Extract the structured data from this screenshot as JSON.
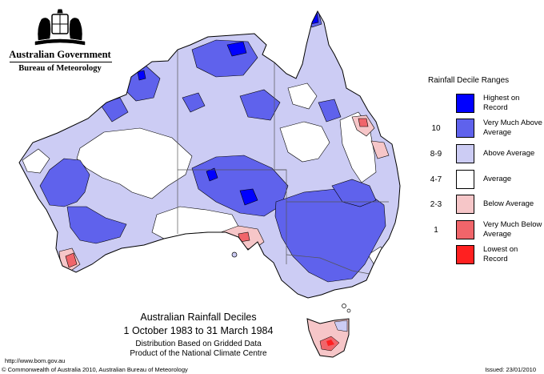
{
  "header": {
    "government": "Australian Government",
    "bureau": "Bureau of Meteorology"
  },
  "legend": {
    "title": "Rainfall Decile Ranges",
    "entries": [
      {
        "range": "",
        "label": "Highest on Record",
        "color": "#0000ff"
      },
      {
        "range": "10",
        "label": "Very Much Above Average",
        "color": "#5f62ec"
      },
      {
        "range": "8-9",
        "label": "Above Average",
        "color": "#ccccf4"
      },
      {
        "range": "4-7",
        "label": "Average",
        "color": "#ffffff"
      },
      {
        "range": "2-3",
        "label": "Below Average",
        "color": "#f6c6c8"
      },
      {
        "range": "1",
        "label": "Very Much Below Average",
        "color": "#f0656a"
      },
      {
        "range": "",
        "label": "Lowest on Record",
        "color": "#ff2020"
      }
    ]
  },
  "map": {
    "title": "Australian Rainfall Deciles",
    "subtitle": "1 October 1983 to 31 March 1984",
    "distribution": "Distribution Based on Gridded Data",
    "product": "Product of the National Climate Centre",
    "colors": {
      "outline": "#000000",
      "border": "#555555"
    }
  },
  "footer": {
    "url": "http://www.bom.gov.au",
    "copyright": "© Commonwealth of Australia 2010, Australian Bureau of Meteorology",
    "issued": "Issued: 23/01/2010"
  }
}
